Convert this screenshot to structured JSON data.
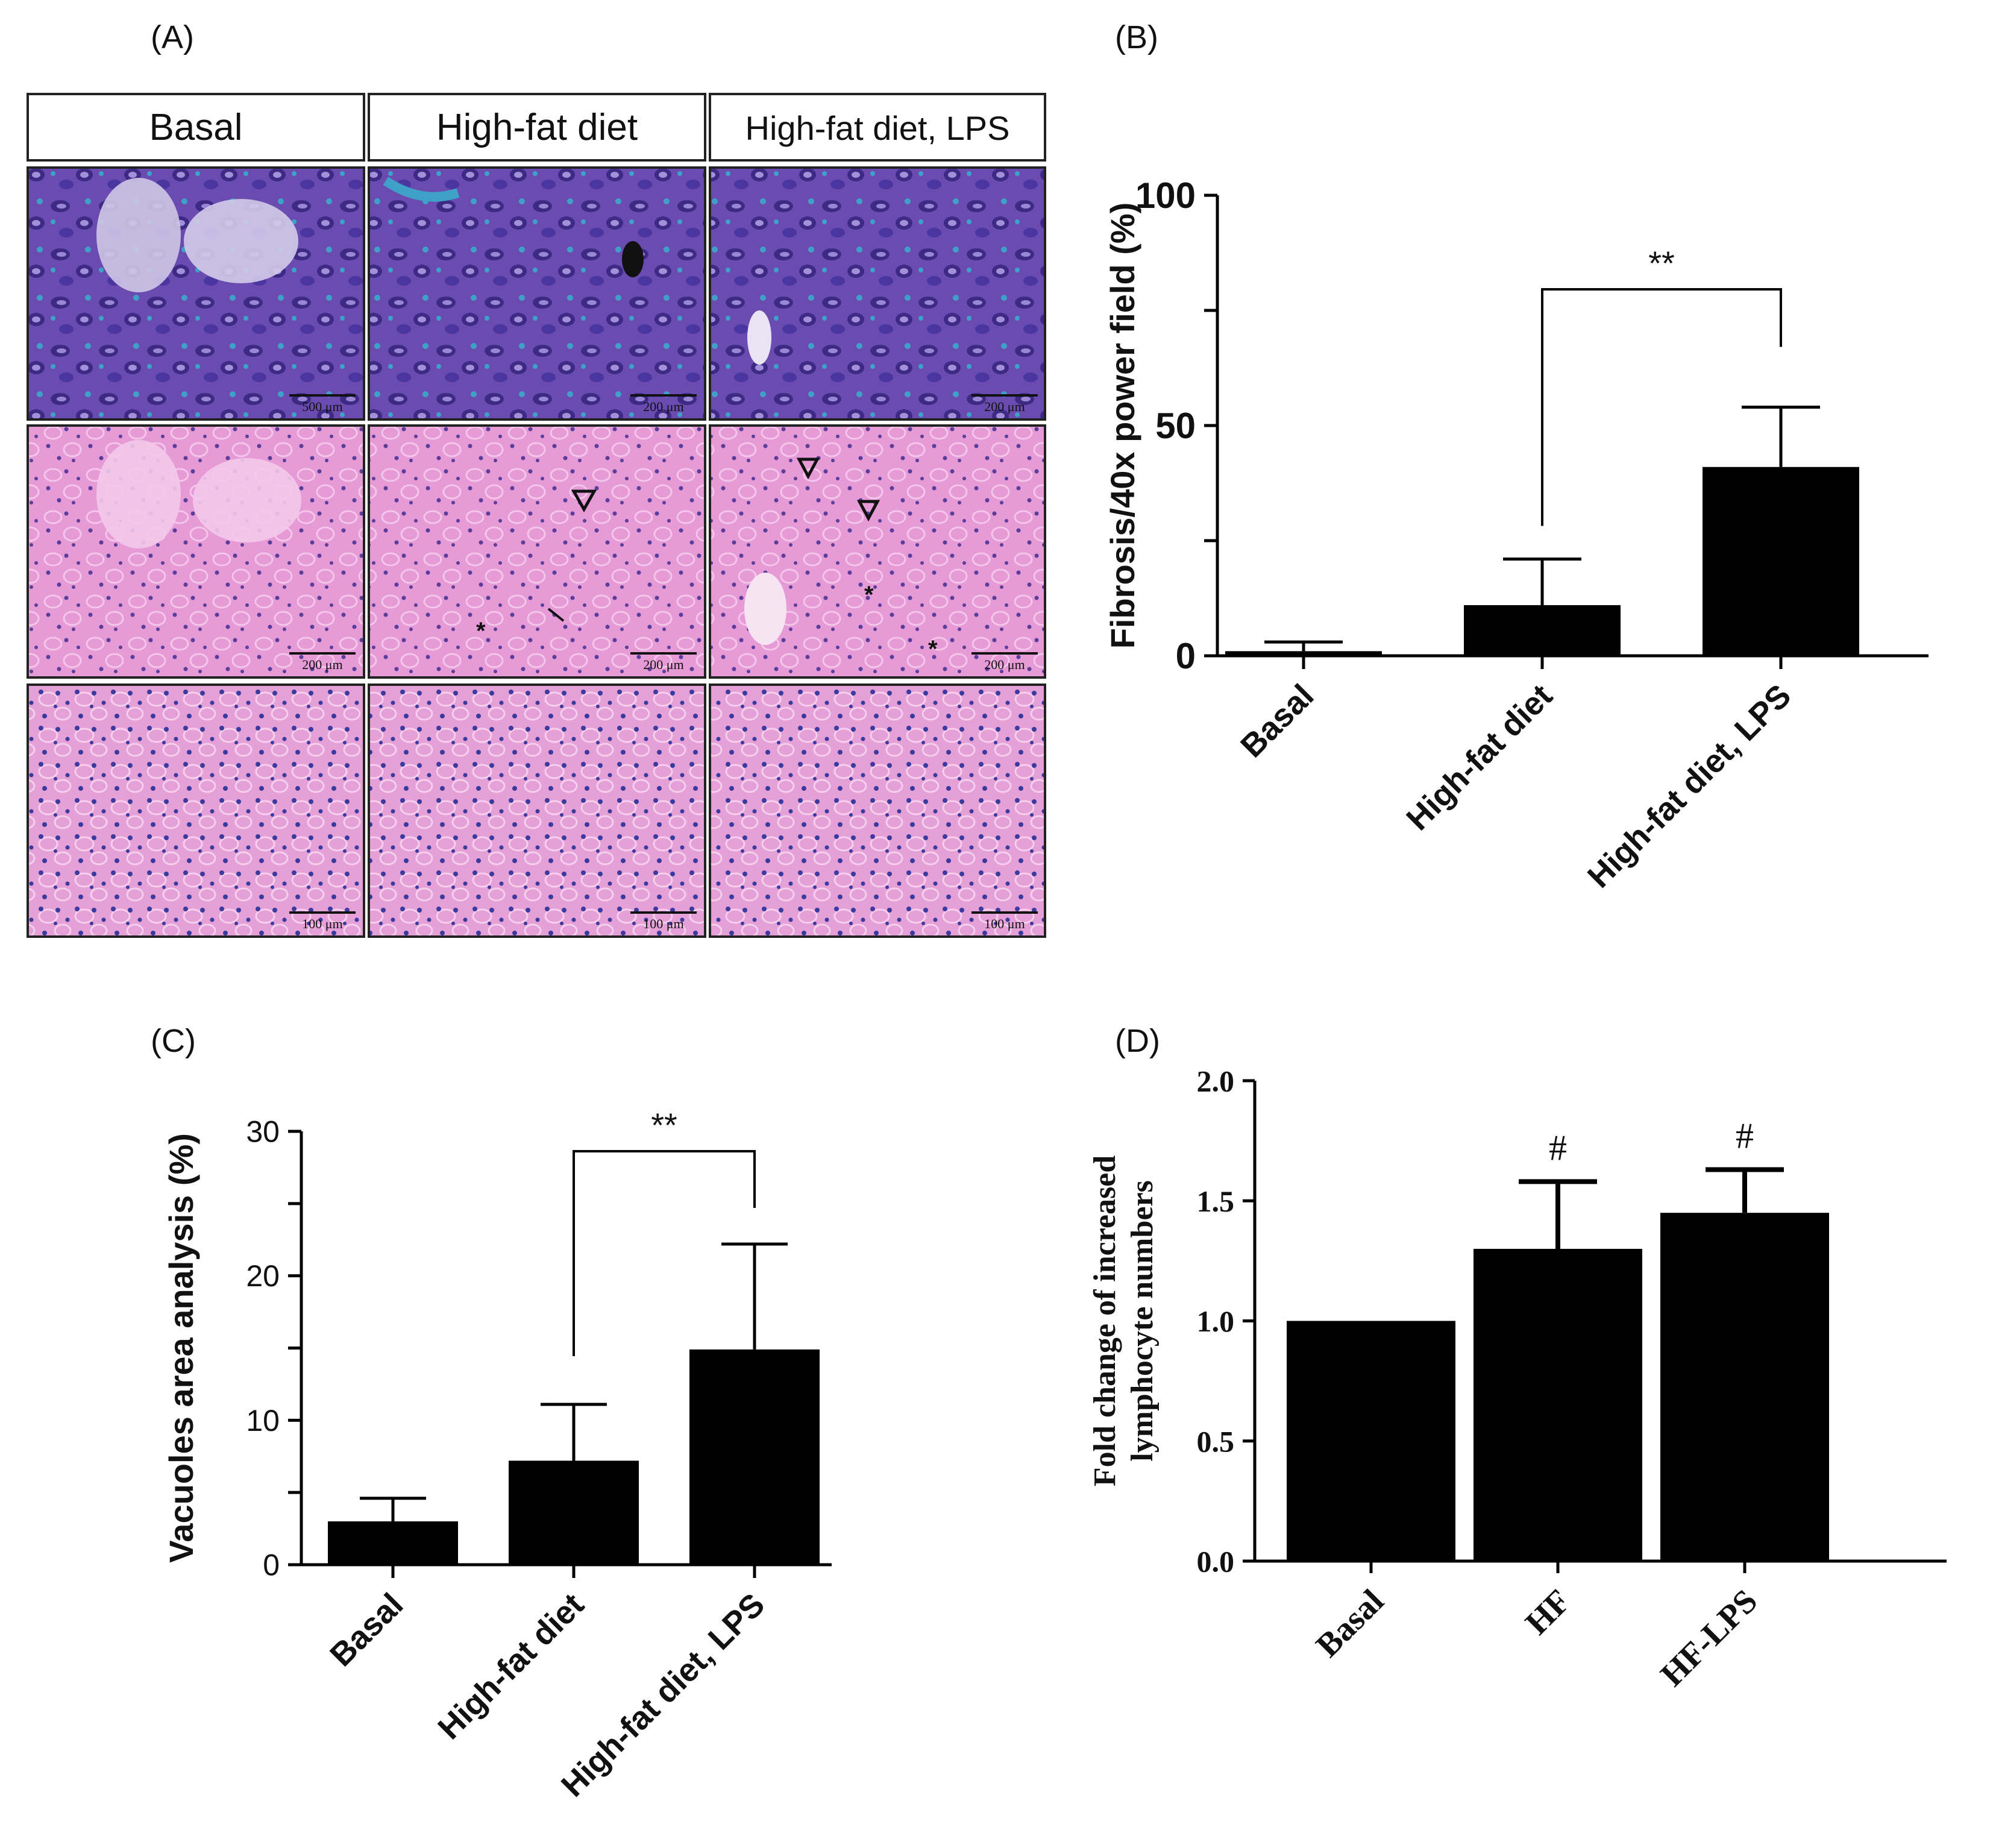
{
  "colors": {
    "bar": "#000000",
    "trichrome_bg": "#6a4bb0",
    "trichrome_blue": "#3fa0c8",
    "he_bg": "#e69ad6",
    "he_dark": "#5a3e9a"
  },
  "panel_a": {
    "label": "(A)",
    "columns": [
      "Basal",
      "High-fat diet",
      "High-fat diet, LPS"
    ],
    "scale_bars": [
      [
        "500 μm",
        "200 μm",
        "200 μm"
      ],
      [
        "200 μm",
        "200 μm",
        "200 μm"
      ],
      [
        "100 μm",
        "100 μm",
        "100 μm"
      ]
    ]
  },
  "chart_data": [
    {
      "panel": "(B)",
      "type": "bar",
      "categories": [
        "Basal",
        "High-fat diet",
        "High-fat diet, LPS"
      ],
      "values": [
        1,
        11,
        41
      ],
      "error": [
        2,
        10,
        13
      ],
      "ylabel": "Fibrosis/40x power field (%)",
      "xlabel": "",
      "ylim": [
        0,
        100
      ],
      "yticks": [
        "0",
        "50",
        "100"
      ],
      "significance": {
        "from": 1,
        "to": 2,
        "label": "**"
      },
      "grid": false
    },
    {
      "panel": "(C)",
      "type": "bar",
      "categories": [
        "Basal",
        "High-fat diet",
        "High-fat diet, LPS"
      ],
      "values": [
        3,
        7.2,
        14.9
      ],
      "error": [
        1.6,
        3.9,
        7.3
      ],
      "ylabel": "Vacuoles area analysis (%)",
      "xlabel": "",
      "ylim": [
        0,
        30
      ],
      "yticks": [
        "0",
        "10",
        "20",
        "30"
      ],
      "significance": {
        "from": 1,
        "to": 2,
        "label": "**"
      },
      "grid": false
    },
    {
      "panel": "(D)",
      "type": "bar",
      "categories": [
        "Basal",
        "HF",
        "HF-LPS"
      ],
      "values": [
        1.0,
        1.3,
        1.45
      ],
      "error": [
        0,
        0.28,
        0.18
      ],
      "ylabel_lines": [
        "Fold change of increased",
        "lymphocyte numbers"
      ],
      "xlabel": "",
      "ylim": [
        0,
        2.0
      ],
      "yticks": [
        "0.0",
        "0.5",
        "1.0",
        "1.5",
        "2.0"
      ],
      "markers": [
        "",
        "#",
        "#"
      ],
      "grid": false
    }
  ]
}
